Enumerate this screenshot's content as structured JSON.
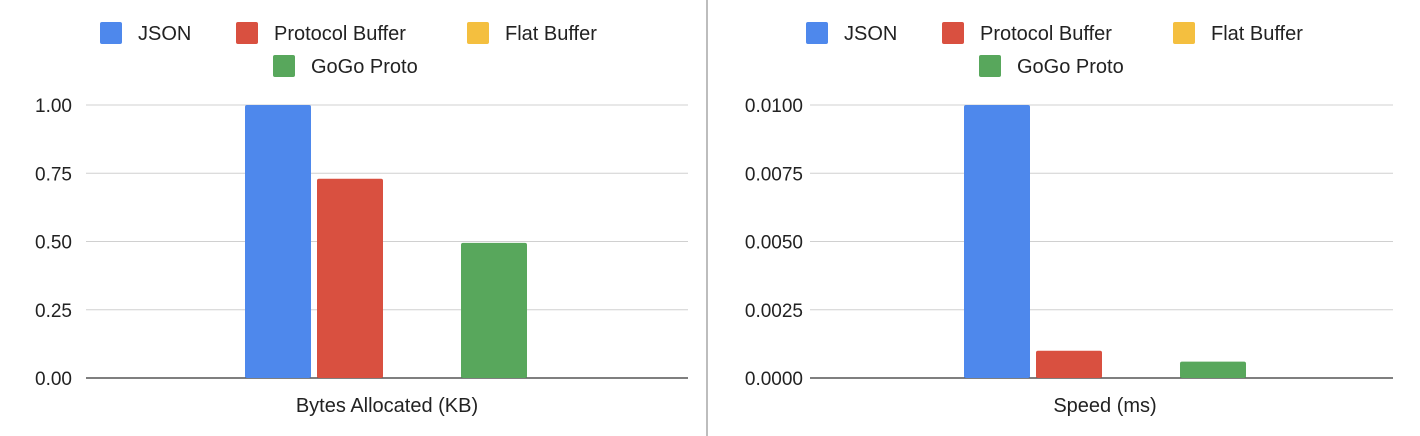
{
  "chart_data": [
    {
      "type": "bar",
      "title": "",
      "xlabel": "Bytes Allocated (KB)",
      "ylabel": "",
      "ylim": [
        0,
        1.0
      ],
      "yticks": [
        "0.00",
        "0.25",
        "0.50",
        "0.75",
        "1.00"
      ],
      "tick_values": [
        0,
        0.25,
        0.5,
        0.75,
        1.0
      ],
      "grid": true,
      "legend": "top",
      "series": [
        {
          "name": "JSON",
          "color": "#4e88ec",
          "value": 1.0
        },
        {
          "name": "Protocol Buffer",
          "color": "#d95040",
          "value": 0.73
        },
        {
          "name": "Flat Buffer",
          "color": "#f4bf3f",
          "value": 0
        },
        {
          "name": "GoGo Proto",
          "color": "#58a75c",
          "value": 0.495
        }
      ]
    },
    {
      "type": "bar",
      "title": "",
      "xlabel": "Speed (ms)",
      "ylabel": "",
      "ylim": [
        0,
        0.01
      ],
      "yticks": [
        "0.0000",
        "0.0025",
        "0.0050",
        "0.0075",
        "0.0100"
      ],
      "tick_values": [
        0,
        0.0025,
        0.005,
        0.0075,
        0.01
      ],
      "grid": true,
      "legend": "top",
      "series": [
        {
          "name": "JSON",
          "color": "#4e88ec",
          "value": 0.01
        },
        {
          "name": "Protocol Buffer",
          "color": "#d95040",
          "value": 0.001
        },
        {
          "name": "Flat Buffer",
          "color": "#f4bf3f",
          "value": 0
        },
        {
          "name": "GoGo Proto",
          "color": "#58a75c",
          "value": 0.0006
        }
      ]
    }
  ]
}
